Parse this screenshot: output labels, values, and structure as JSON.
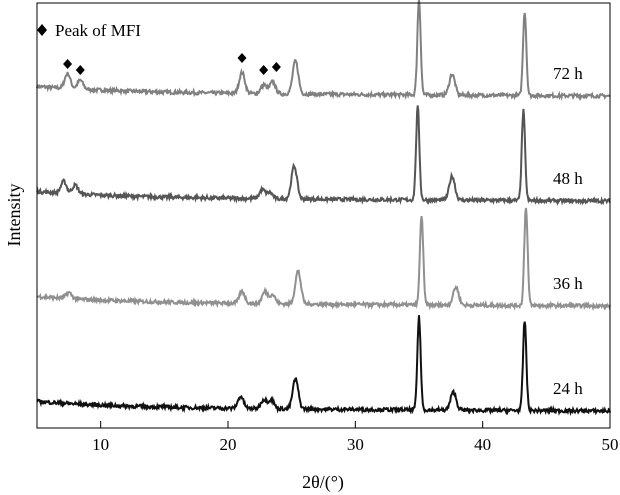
{
  "chart_data": {
    "type": "line",
    "xlabel": "2θ/(°)",
    "ylabel": "Intensity",
    "xlim": [
      5,
      50
    ],
    "xticks": [
      10,
      20,
      30,
      40,
      50
    ],
    "yticks": "none",
    "grid": false,
    "legend": {
      "marker": "diamond",
      "text": "Peak of MFI",
      "placement": "top-left"
    },
    "mfi_peaks_2theta": [
      7.4,
      8.4,
      21.1,
      22.8,
      23.8
    ],
    "series": [
      {
        "name": "72 h",
        "color": "#808080",
        "offset": 3.0,
        "peaks": [
          [
            7.4,
            0.05
          ],
          [
            8.4,
            0.03
          ],
          [
            21.1,
            0.07
          ],
          [
            22.8,
            0.03
          ],
          [
            23.5,
            0.04
          ],
          [
            25.3,
            0.11
          ],
          [
            35.0,
            0.32
          ],
          [
            37.6,
            0.07
          ],
          [
            43.3,
            0.28
          ]
        ]
      },
      {
        "name": "48 h",
        "color": "#555555",
        "offset": 2.0,
        "peaks": [
          [
            7.1,
            0.04
          ],
          [
            8.0,
            0.03
          ],
          [
            22.7,
            0.03
          ],
          [
            23.3,
            0.02
          ],
          [
            25.2,
            0.11
          ],
          [
            34.9,
            0.31
          ],
          [
            37.6,
            0.08
          ],
          [
            43.2,
            0.3
          ]
        ]
      },
      {
        "name": "36 h",
        "color": "#909090",
        "offset": 1.0,
        "peaks": [
          [
            7.5,
            0.02
          ],
          [
            21.1,
            0.04
          ],
          [
            22.9,
            0.04
          ],
          [
            23.5,
            0.03
          ],
          [
            25.5,
            0.11
          ],
          [
            35.2,
            0.3
          ],
          [
            37.9,
            0.06
          ],
          [
            43.4,
            0.33
          ]
        ]
      },
      {
        "name": "24 h",
        "color": "#111111",
        "offset": 0.0,
        "peaks": [
          [
            21.0,
            0.04
          ],
          [
            22.8,
            0.03
          ],
          [
            23.4,
            0.03
          ],
          [
            25.3,
            0.1
          ],
          [
            35.0,
            0.31
          ],
          [
            37.7,
            0.06
          ],
          [
            43.3,
            0.3
          ]
        ]
      }
    ]
  },
  "colors": {
    "axis": "#000000",
    "background": "#ffffff"
  }
}
